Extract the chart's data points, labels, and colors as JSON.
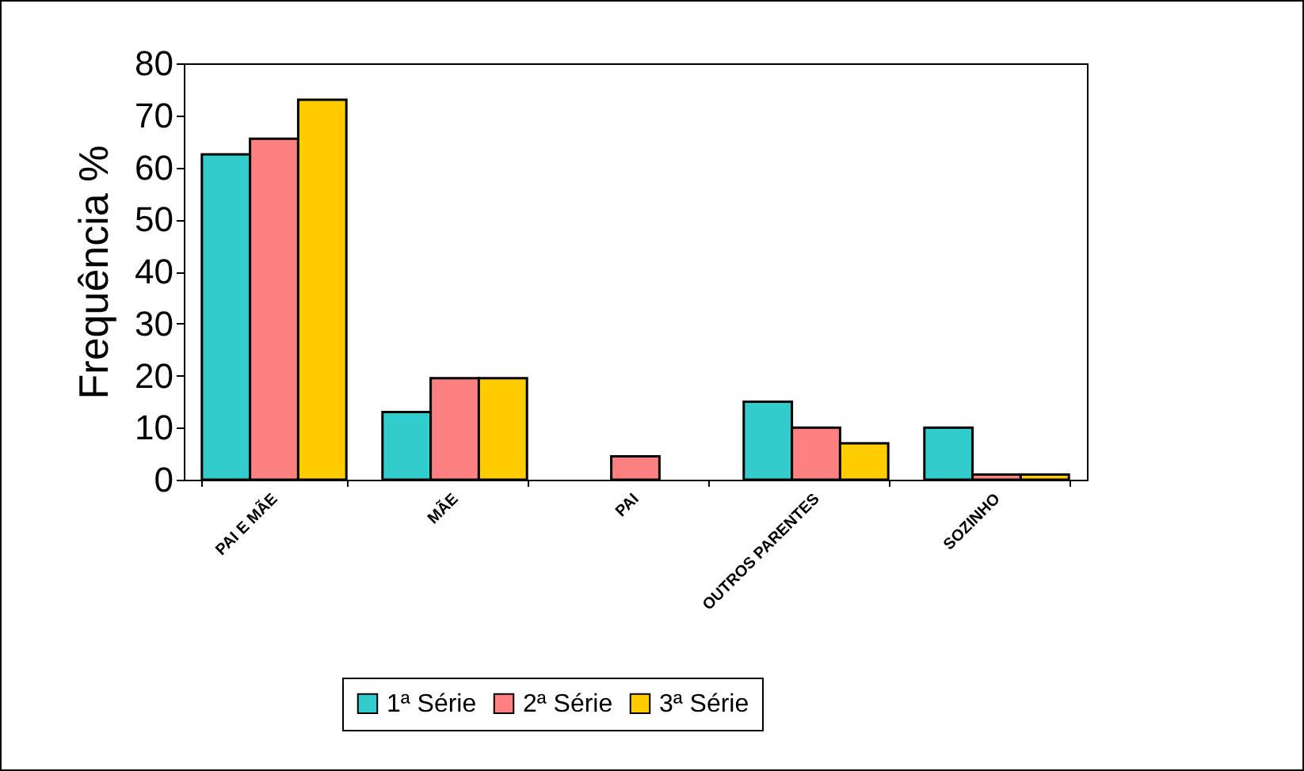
{
  "chart_data": {
    "type": "bar",
    "ylabel": "Frequência %",
    "categories": [
      "PAI E MÃE",
      "MÃE",
      "PAI",
      "OUTROS PARENTES",
      "SOZINHO"
    ],
    "series": [
      {
        "name": "1ª Série",
        "color": "#33cccc",
        "values": [
          62.5,
          13,
          null,
          15,
          10
        ]
      },
      {
        "name": "2ª Série",
        "color": "#ff8080",
        "values": [
          65.5,
          19.5,
          4.5,
          10,
          1
        ]
      },
      {
        "name": "3ª Série",
        "color": "#ffcc00",
        "values": [
          73,
          19.5,
          null,
          7,
          1
        ]
      }
    ],
    "ylim": [
      0,
      80
    ],
    "yticks": [
      0,
      10,
      20,
      30,
      40,
      50,
      60,
      70,
      80
    ],
    "grid": false,
    "legend": "bottom"
  }
}
